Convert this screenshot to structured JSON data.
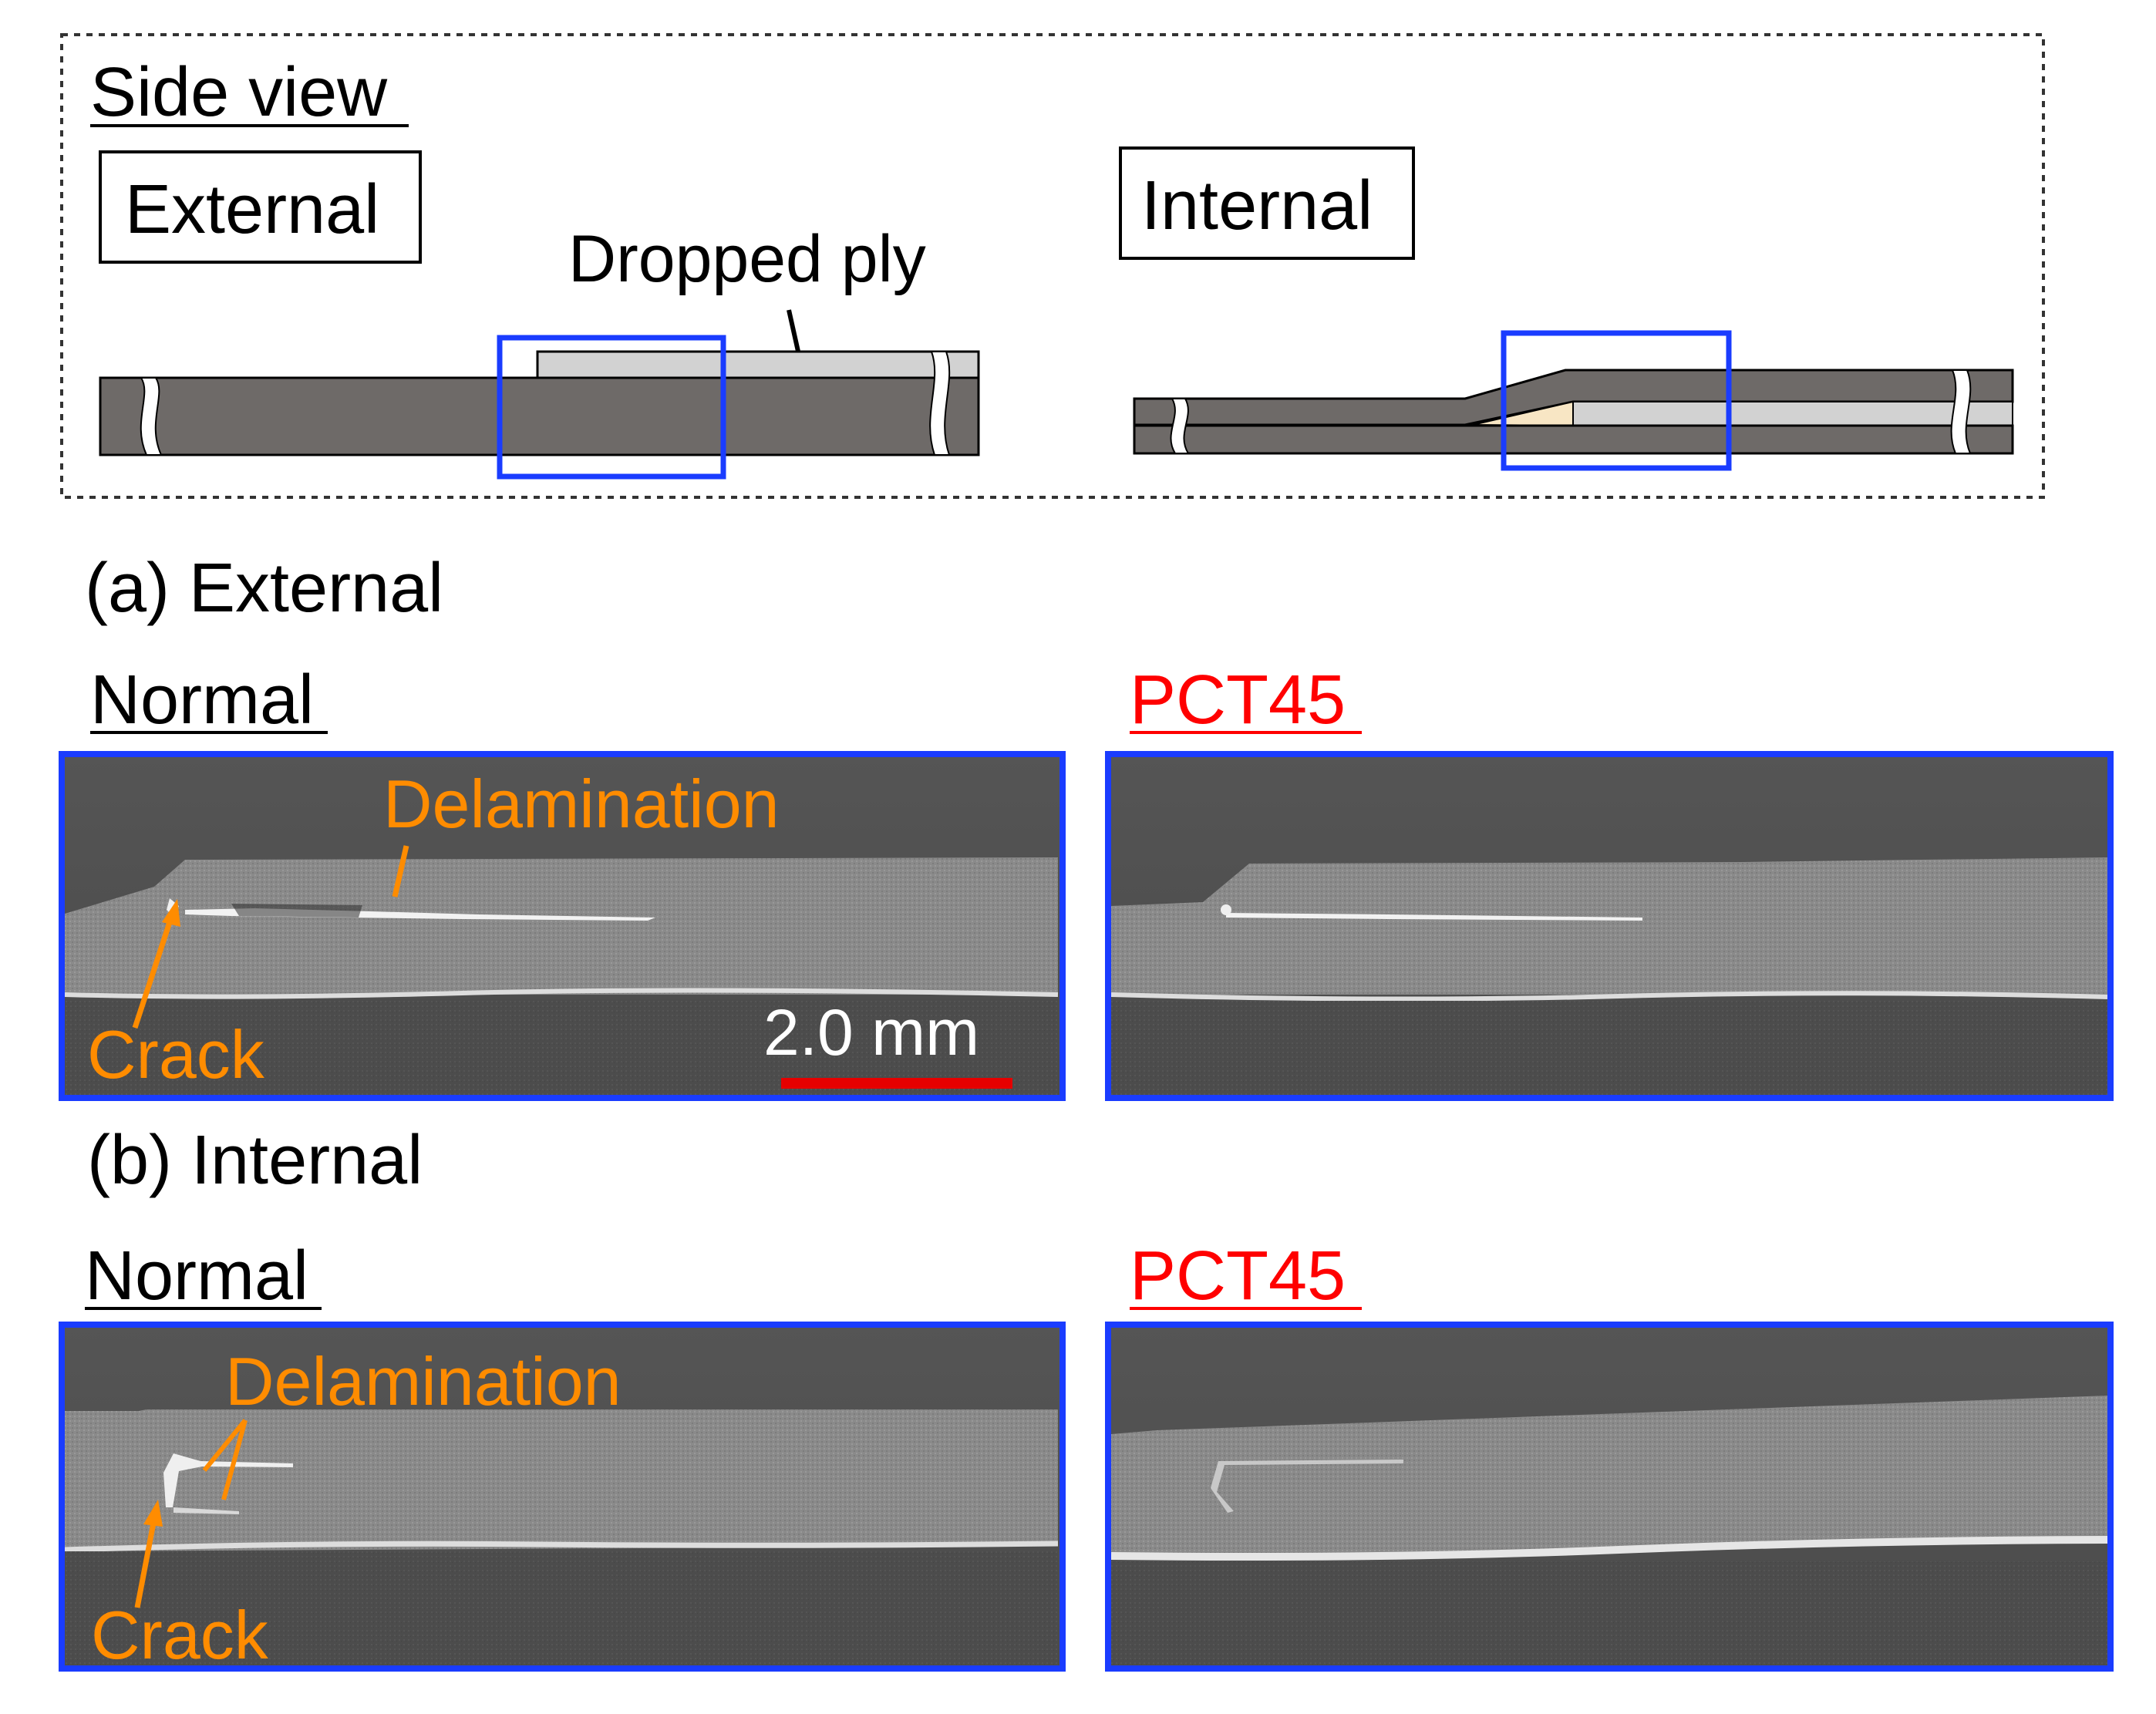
{
  "side_view": {
    "heading": "Side view",
    "external_label": "External",
    "internal_label": "Internal",
    "dropped_ply_label": "Dropped ply"
  },
  "section_a": {
    "heading": "(a) External",
    "normal_label": "Normal",
    "pct_label": "PCT45",
    "delamination_label": "Delamination",
    "crack_label": "Crack",
    "scale_bar_label": "2.0 mm"
  },
  "section_b": {
    "heading": "(b) Internal",
    "normal_label": "Normal",
    "pct_label": "PCT45",
    "delamination_label": "Delamination",
    "crack_label": "Crack"
  },
  "colors": {
    "laminate": "#6e6a68",
    "dropped_ply": "#d2d2d2",
    "resin_pocket": "#f8e6c4",
    "highlight_box": "#1a3cff",
    "annotation": "#ff8c00",
    "pct_label": "#ff0000",
    "scale_bar": "#e60000"
  }
}
